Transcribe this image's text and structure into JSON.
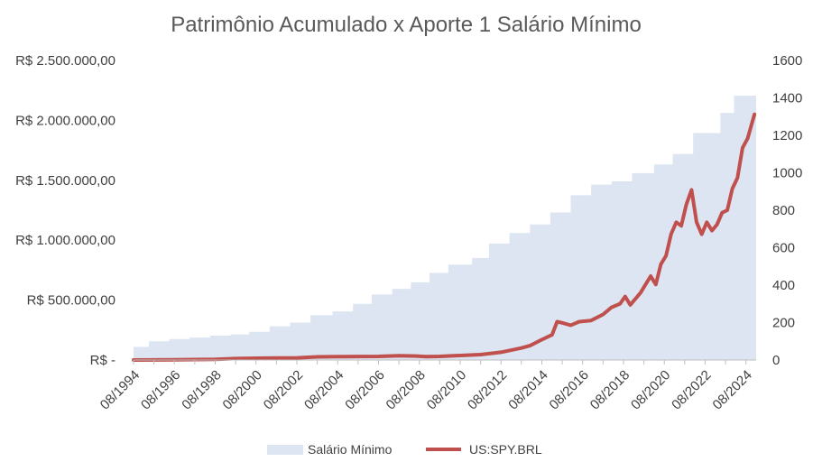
{
  "chart_data": {
    "type": "area",
    "title": "Patrimônio Acumulado x Aporte 1 Salário Mínimo",
    "x_tick_labels": [
      "08/1994",
      "08/1996",
      "08/1998",
      "08/2000",
      "08/2002",
      "08/2004",
      "08/2006",
      "08/2008",
      "08/2010",
      "08/2012",
      "08/2014",
      "08/2016",
      "08/2018",
      "08/2020",
      "08/2022",
      "08/2024"
    ],
    "y_left": {
      "ylim": [
        0,
        2500000
      ],
      "tick_values": [
        0,
        500000,
        1000000,
        1500000,
        2000000,
        2500000
      ],
      "tick_labels": [
        "R$ -",
        "R$ 500.000,00",
        "R$ 1.000.000,00",
        "R$ 1.500.000,00",
        "R$ 2.000.000,00",
        "R$ 2.500.000,00"
      ]
    },
    "y_right": {
      "ylim": [
        0,
        1600
      ],
      "tick_values": [
        0,
        200,
        400,
        600,
        800,
        1000,
        1200,
        1400,
        1600
      ],
      "tick_labels": [
        "0",
        "200",
        "400",
        "600",
        "800",
        "1000",
        "1200",
        "1400",
        "1600"
      ]
    },
    "legend_position": "bottom",
    "series": [
      {
        "name": "Salário Mínimo",
        "type": "area",
        "axis": "right",
        "color": "#dce5f1",
        "x": [
          "1994-08",
          "1995-05",
          "1996-05",
          "1997-05",
          "1998-05",
          "1999-05",
          "2000-04",
          "2001-04",
          "2002-04",
          "2003-04",
          "2004-05",
          "2005-05",
          "2006-04",
          "2007-04",
          "2008-03",
          "2009-02",
          "2010-01",
          "2011-03",
          "2012-01",
          "2013-01",
          "2014-01",
          "2015-01",
          "2016-01",
          "2017-01",
          "2018-01",
          "2019-01",
          "2020-02",
          "2021-01",
          "2022-01",
          "2023-05",
          "2024-01",
          "2025-01"
        ],
        "values": [
          70,
          100,
          112,
          120,
          130,
          136,
          151,
          180,
          200,
          240,
          260,
          300,
          350,
          380,
          415,
          465,
          510,
          545,
          622,
          678,
          724,
          788,
          880,
          937,
          954,
          998,
          1045,
          1100,
          1212,
          1320,
          1412,
          1412
        ]
      },
      {
        "name": "US:SPY.BRL",
        "type": "line",
        "axis": "left",
        "color": "#c0504d",
        "x": [
          "1994-08",
          "1996-08",
          "1998-08",
          "1999-08",
          "2000-08",
          "2001-08",
          "2002-08",
          "2003-08",
          "2004-08",
          "2005-08",
          "2006-08",
          "2007-08",
          "2008-06",
          "2008-12",
          "2009-08",
          "2010-08",
          "2011-08",
          "2012-08",
          "2013-08",
          "2014-01",
          "2014-08",
          "2015-02",
          "2015-05",
          "2015-08",
          "2016-01",
          "2016-06",
          "2017-01",
          "2017-08",
          "2018-01",
          "2018-06",
          "2018-09",
          "2018-12",
          "2019-06",
          "2019-12",
          "2020-03",
          "2020-06",
          "2020-09",
          "2020-12",
          "2021-03",
          "2021-06",
          "2021-09",
          "2021-12",
          "2022-03",
          "2022-06",
          "2022-09",
          "2022-12",
          "2023-03",
          "2023-06",
          "2023-09",
          "2023-12",
          "2024-03",
          "2024-06",
          "2024-09",
          "2024-12",
          "2025-01"
        ],
        "values": [
          0,
          2000,
          5000,
          12000,
          15000,
          17000,
          18000,
          26000,
          28000,
          29000,
          30000,
          36000,
          33000,
          28000,
          30000,
          38000,
          45000,
          65000,
          100000,
          120000,
          170000,
          210000,
          320000,
          310000,
          290000,
          320000,
          330000,
          380000,
          440000,
          470000,
          530000,
          460000,
          560000,
          700000,
          630000,
          800000,
          870000,
          1050000,
          1150000,
          1120000,
          1300000,
          1420000,
          1150000,
          1050000,
          1150000,
          1080000,
          1130000,
          1230000,
          1250000,
          1430000,
          1520000,
          1770000,
          1850000,
          2000000,
          2050000
        ]
      }
    ],
    "legend": [
      {
        "label": "Salário Mínimo",
        "marker": "patch",
        "color": "#dce5f1"
      },
      {
        "label": "US:SPY.BRL",
        "marker": "line",
        "color": "#c0504d"
      }
    ]
  }
}
